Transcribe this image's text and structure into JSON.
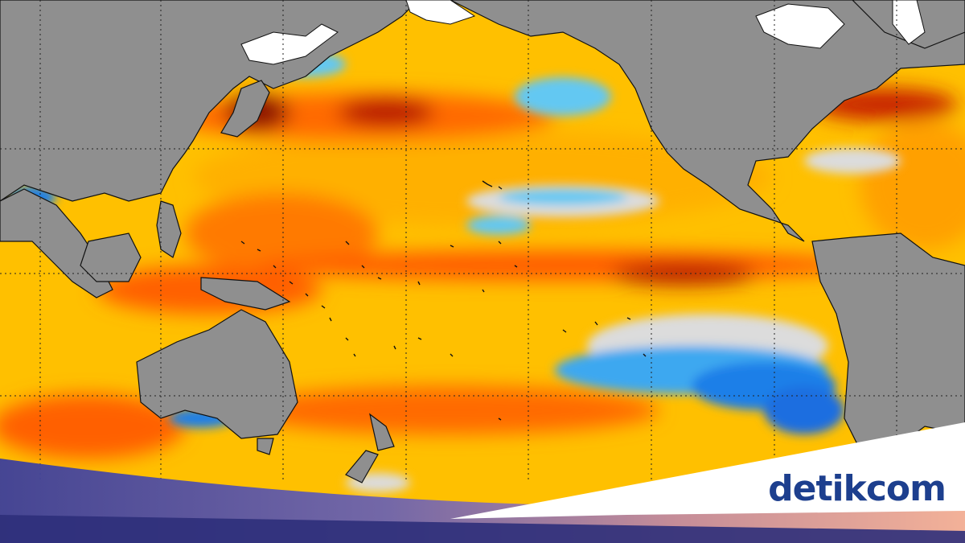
{
  "brand": {
    "name_part1": "detik",
    "name_part2": "com",
    "accent_color": "#1d3f8e"
  },
  "map": {
    "description_type": "sea-surface-temperature-anomaly",
    "region": "Pacific Ocean",
    "colors": {
      "land": "#8f8f8f",
      "ice": "#ffffff",
      "neutral": "#dcdcdc",
      "warm_light": "#ffd21a",
      "warm": "#ffae00",
      "hot": "#ff6a00",
      "very_hot": "#d62800",
      "extreme": "#6e0a00",
      "cool": "#63c8f2",
      "cold": "#1d7fe8",
      "coast": "#111111",
      "grid": "#222222"
    },
    "graticule": "dotted"
  }
}
